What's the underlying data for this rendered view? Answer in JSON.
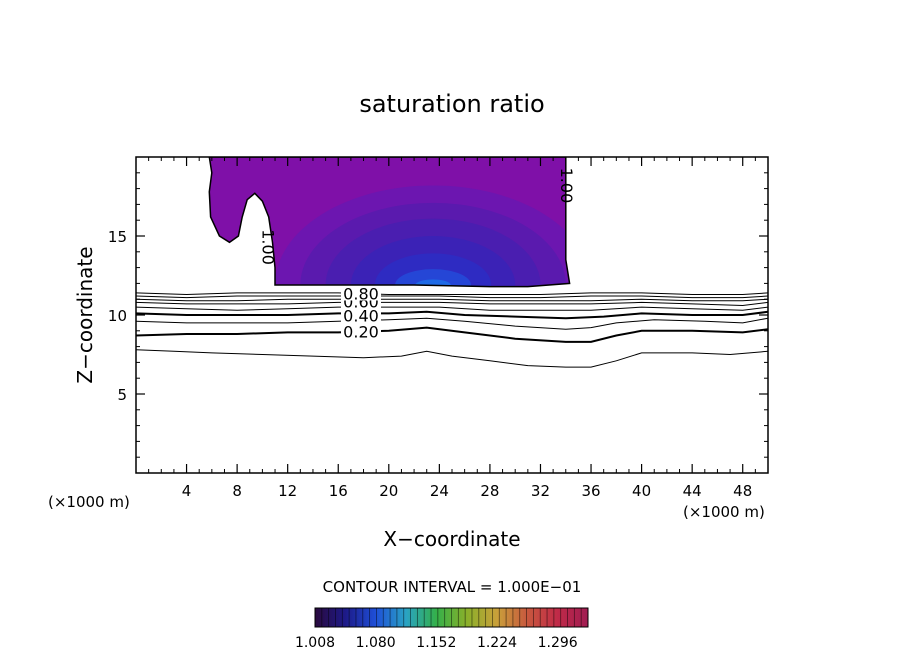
{
  "chart_data": {
    "type": "contour",
    "title": "saturation ratio",
    "xlabel": "X−coordinate",
    "ylabel": "Z−coordinate",
    "x_unit": "(×1000 m)",
    "y_unit": "(×1000 m)",
    "xlim": [
      0,
      50
    ],
    "ylim": [
      0,
      20
    ],
    "x_ticks": [
      4,
      8,
      12,
      16,
      20,
      24,
      28,
      32,
      36,
      40,
      44,
      48
    ],
    "y_ticks": [
      5,
      10,
      15
    ],
    "contour_interval_text": "CONTOUR INTERVAL = 1.000E−01",
    "contour_labels": [
      "0.20",
      "0.40",
      "0.60",
      "0.80",
      "1.00",
      "1.00"
    ],
    "contour_levels": [
      0.1,
      0.2,
      0.3,
      0.4,
      0.5,
      0.6,
      0.7,
      0.8,
      0.9
    ],
    "lower_contours": [
      {
        "level": 0.1,
        "points": [
          [
            0,
            7.8
          ],
          [
            3,
            7.7
          ],
          [
            6,
            7.6
          ],
          [
            10,
            7.5
          ],
          [
            14,
            7.4
          ],
          [
            18,
            7.3
          ],
          [
            21,
            7.4
          ],
          [
            23,
            7.7
          ],
          [
            25,
            7.4
          ],
          [
            28,
            7.1
          ],
          [
            31,
            6.8
          ],
          [
            34,
            6.7
          ],
          [
            36,
            6.7
          ],
          [
            38,
            7.1
          ],
          [
            40,
            7.6
          ],
          [
            44,
            7.6
          ],
          [
            47,
            7.5
          ],
          [
            50,
            7.7
          ]
        ]
      },
      {
        "level": 0.2,
        "points": [
          [
            0,
            8.7
          ],
          [
            4,
            8.8
          ],
          [
            8,
            8.8
          ],
          [
            12,
            8.9
          ],
          [
            16,
            8.9
          ],
          [
            20,
            9.0
          ],
          [
            23,
            9.2
          ],
          [
            26,
            8.9
          ],
          [
            30,
            8.5
          ],
          [
            34,
            8.3
          ],
          [
            36,
            8.3
          ],
          [
            38,
            8.7
          ],
          [
            40,
            9.0
          ],
          [
            44,
            9.0
          ],
          [
            48,
            8.9
          ],
          [
            50,
            9.1
          ]
        ]
      },
      {
        "level": 0.3,
        "points": [
          [
            0,
            9.6
          ],
          [
            4,
            9.5
          ],
          [
            8,
            9.5
          ],
          [
            12,
            9.5
          ],
          [
            16,
            9.6
          ],
          [
            20,
            9.7
          ],
          [
            23,
            9.8
          ],
          [
            26,
            9.6
          ],
          [
            30,
            9.3
          ],
          [
            34,
            9.1
          ],
          [
            36,
            9.2
          ],
          [
            38,
            9.5
          ],
          [
            41,
            9.7
          ],
          [
            45,
            9.6
          ],
          [
            48,
            9.5
          ],
          [
            50,
            9.8
          ]
        ]
      },
      {
        "level": 0.4,
        "points": [
          [
            0,
            10.1
          ],
          [
            4,
            10.0
          ],
          [
            8,
            10.0
          ],
          [
            12,
            10.0
          ],
          [
            16,
            10.1
          ],
          [
            20,
            10.1
          ],
          [
            23,
            10.2
          ],
          [
            26,
            10.0
          ],
          [
            30,
            9.9
          ],
          [
            34,
            9.8
          ],
          [
            37,
            9.9
          ],
          [
            40,
            10.1
          ],
          [
            44,
            10.0
          ],
          [
            48,
            10.0
          ],
          [
            50,
            10.2
          ]
        ]
      },
      {
        "level": 0.5,
        "points": [
          [
            0,
            10.5
          ],
          [
            4,
            10.4
          ],
          [
            8,
            10.3
          ],
          [
            12,
            10.4
          ],
          [
            16,
            10.5
          ],
          [
            20,
            10.5
          ],
          [
            24,
            10.5
          ],
          [
            28,
            10.3
          ],
          [
            32,
            10.3
          ],
          [
            36,
            10.3
          ],
          [
            40,
            10.5
          ],
          [
            44,
            10.4
          ],
          [
            48,
            10.3
          ],
          [
            50,
            10.5
          ]
        ]
      },
      {
        "level": 0.6,
        "points": [
          [
            0,
            10.8
          ],
          [
            4,
            10.7
          ],
          [
            8,
            10.7
          ],
          [
            12,
            10.7
          ],
          [
            16,
            10.8
          ],
          [
            20,
            10.8
          ],
          [
            24,
            10.8
          ],
          [
            28,
            10.7
          ],
          [
            32,
            10.7
          ],
          [
            36,
            10.7
          ],
          [
            40,
            10.8
          ],
          [
            44,
            10.7
          ],
          [
            48,
            10.6
          ],
          [
            50,
            10.8
          ]
        ]
      },
      {
        "level": 0.7,
        "points": [
          [
            0,
            11.0
          ],
          [
            4,
            10.9
          ],
          [
            8,
            10.9
          ],
          [
            12,
            11.0
          ],
          [
            16,
            11.0
          ],
          [
            20,
            11.0
          ],
          [
            24,
            11.0
          ],
          [
            28,
            10.9
          ],
          [
            32,
            10.9
          ],
          [
            36,
            10.9
          ],
          [
            40,
            11.0
          ],
          [
            44,
            10.9
          ],
          [
            48,
            10.9
          ],
          [
            50,
            11.0
          ]
        ]
      },
      {
        "level": 0.8,
        "points": [
          [
            0,
            11.2
          ],
          [
            4,
            11.1
          ],
          [
            8,
            11.2
          ],
          [
            12,
            11.2
          ],
          [
            16,
            11.2
          ],
          [
            20,
            11.2
          ],
          [
            24,
            11.2
          ],
          [
            28,
            11.1
          ],
          [
            32,
            11.1
          ],
          [
            36,
            11.2
          ],
          [
            40,
            11.2
          ],
          [
            44,
            11.1
          ],
          [
            48,
            11.1
          ],
          [
            50,
            11.2
          ]
        ]
      },
      {
        "level": 0.9,
        "points": [
          [
            0,
            11.4
          ],
          [
            4,
            11.3
          ],
          [
            8,
            11.4
          ],
          [
            12,
            11.4
          ],
          [
            16,
            11.4
          ],
          [
            20,
            11.3
          ],
          [
            24,
            11.3
          ],
          [
            28,
            11.3
          ],
          [
            32,
            11.3
          ],
          [
            36,
            11.4
          ],
          [
            40,
            11.4
          ],
          [
            44,
            11.3
          ],
          [
            48,
            11.3
          ],
          [
            50,
            11.4
          ]
        ]
      }
    ],
    "supersaturated_region": {
      "level": 1.0,
      "outline": [
        [
          5.8,
          20
        ],
        [
          34.0,
          20
        ],
        [
          34.0,
          13.5
        ],
        [
          34.3,
          12.0
        ],
        [
          31.0,
          11.8
        ],
        [
          28,
          11.8
        ],
        [
          22,
          11.9
        ],
        [
          16,
          11.9
        ],
        [
          11.0,
          11.9
        ],
        [
          11.0,
          13.0
        ],
        [
          10.8,
          14.6
        ],
        [
          10.5,
          16.2
        ],
        [
          10.0,
          17.2
        ],
        [
          9.4,
          17.7
        ],
        [
          8.8,
          17.3
        ],
        [
          8.4,
          16.2
        ],
        [
          8.1,
          15.0
        ],
        [
          7.4,
          14.6
        ],
        [
          6.6,
          15.0
        ],
        [
          5.9,
          16.2
        ],
        [
          5.8,
          17.8
        ],
        [
          6.0,
          19.0
        ]
      ],
      "core": {
        "x": 23.5,
        "z": 11.9
      },
      "layers": [
        {
          "value": 1.008,
          "rx": 1.0,
          "rz": 1.0
        },
        {
          "value": 1.03,
          "rx": 12.5,
          "rz": 6.3
        },
        {
          "value": 1.06,
          "rx": 10.5,
          "rz": 5.2
        },
        {
          "value": 1.09,
          "rx": 8.5,
          "rz": 4.2
        },
        {
          "value": 1.12,
          "rx": 6.5,
          "rz": 3.1
        },
        {
          "value": 1.16,
          "rx": 4.6,
          "rz": 2.0
        },
        {
          "value": 1.2,
          "rx": 3.0,
          "rz": 1.0
        },
        {
          "value": 1.24,
          "rx": 1.4,
          "rz": 0.35
        }
      ]
    },
    "colorbar": {
      "range": [
        1.008,
        1.332
      ],
      "tick_labels": [
        "1.008",
        "1.080",
        "1.152",
        "1.224",
        "1.296"
      ],
      "tick_values": [
        1.008,
        1.08,
        1.152,
        1.224,
        1.296
      ],
      "stops": [
        "#2a0a3e",
        "#1d1a88",
        "#1e4fd8",
        "#2aa3c4",
        "#34b04a",
        "#8ab02a",
        "#c9a03a",
        "#c8583e",
        "#c02a48",
        "#a01c52"
      ]
    },
    "grid": false
  }
}
